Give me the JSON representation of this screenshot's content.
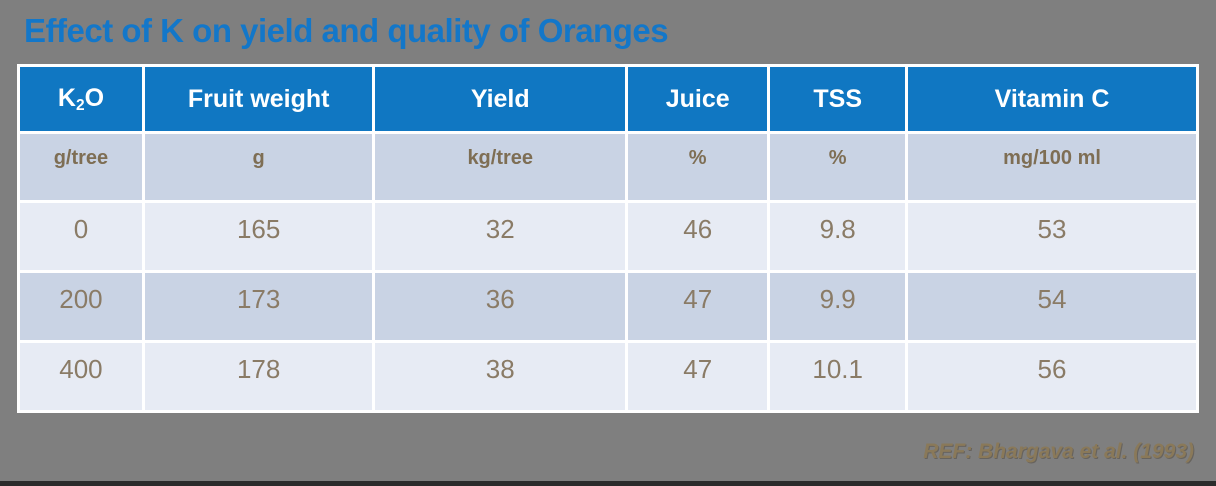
{
  "slide": {
    "title": "Effect of K on yield and quality of Oranges",
    "reference": "REF: Bhargava et al. (1993)"
  },
  "table": {
    "header": {
      "k2o": {
        "base": "K",
        "sub": "2",
        "rest": "O"
      },
      "fruit_weight": "Fruit weight",
      "yield": "Yield",
      "juice": "Juice",
      "tss": "TSS",
      "vitamin_c": "Vitamin C"
    },
    "units": [
      "g/tree",
      "g",
      "kg/tree",
      "%",
      "%",
      "mg/100 ml"
    ],
    "rows": [
      [
        "0",
        "165",
        "32",
        "46",
        "9.8",
        "53"
      ],
      [
        "200",
        "173",
        "36",
        "47",
        "9.9",
        "54"
      ],
      [
        "400",
        "178",
        "38",
        "47",
        "10.1",
        "56"
      ]
    ]
  },
  "colors": {
    "background_gray": "#7f7f7f",
    "title_blue": "#1377c9",
    "header_blue": "#1077c2",
    "header_text": "#ffffff",
    "row_dark_blue_gray": "#c9d3e4",
    "row_light_blue_gray": "#e7ebf4",
    "body_text_brown": "#8a7b66",
    "units_text_brown": "#7e6e54",
    "reference_text_brown": "#8a7959",
    "cell_gap_white": "#ffffff"
  }
}
